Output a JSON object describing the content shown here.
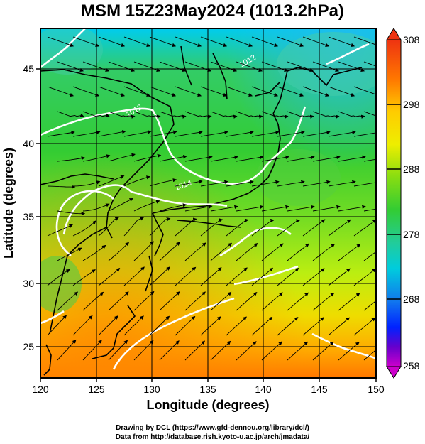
{
  "title": "MSM 15Z23May2024 (1013.2hPa)",
  "x_axis": {
    "label": "Longitude (degrees)",
    "ticks": [
      "120",
      "125",
      "130",
      "135",
      "140",
      "145",
      "150"
    ],
    "range": [
      120,
      150
    ]
  },
  "y_axis": {
    "label": "Latitude  (degrees)",
    "ticks": [
      "25",
      "30",
      "35",
      "40",
      "45"
    ],
    "range": [
      22.4,
      47.6
    ]
  },
  "colorbar": {
    "ticks": [
      "308",
      "298",
      "288",
      "278",
      "268",
      "258"
    ],
    "range": [
      258,
      308
    ],
    "units_shown": "none"
  },
  "contour_labels": [
    "1012",
    "1012",
    "1014"
  ],
  "credits": {
    "line1": "Drawing by DCL (https://www.gfd-dennou.org/library/dcl/)",
    "line2": "Data from http://database.rish.kyoto-u.ac.jp/arch/jmadata/"
  },
  "colors": {
    "cold": "#cc00cc",
    "cool": "#0033ff",
    "mid_cool": "#00ccdd",
    "mid": "#33cc33",
    "warm": "#eeee00",
    "hot": "#ff6600",
    "very_hot": "#ee3311"
  }
}
